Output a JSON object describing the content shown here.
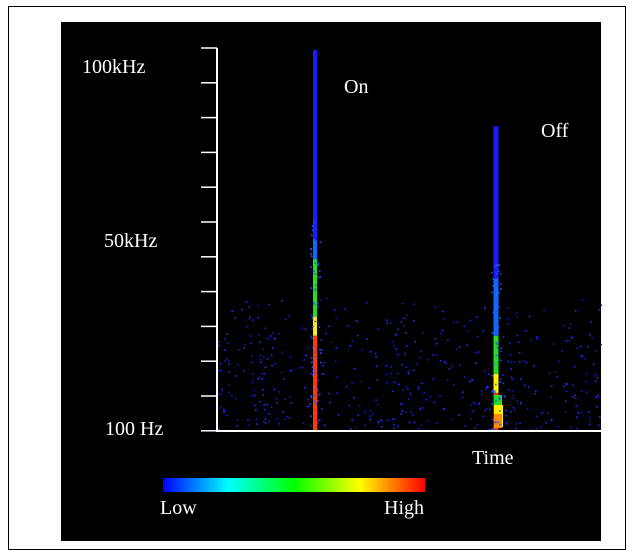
{
  "chart_data": {
    "type": "heatmap",
    "title": "",
    "xlabel": "Time",
    "ylabel": "",
    "y_tick_labels": [
      "100kHz",
      "50kHz",
      "100 Hz"
    ],
    "annotations": [
      "On",
      "Off"
    ],
    "legend": {
      "low_label": "Low",
      "high_label": "High",
      "gradient_colors": [
        "#0000ff",
        "#00ffff",
        "#00ff00",
        "#ffff00",
        "#ff0000"
      ]
    },
    "events": [
      {
        "label": "On",
        "max_freq_khz": 100,
        "segments": [
          {
            "from_khz": 50,
            "to_khz": 100,
            "level": "low"
          },
          {
            "from_khz": 45,
            "to_khz": 50,
            "level": "low-mid"
          },
          {
            "from_khz": 30,
            "to_khz": 45,
            "level": "mid"
          },
          {
            "from_khz": 25,
            "to_khz": 30,
            "level": "mid-high"
          },
          {
            "from_khz": 0.1,
            "to_khz": 25,
            "level": "high"
          }
        ]
      },
      {
        "label": "Off",
        "max_freq_khz": 80,
        "segments": [
          {
            "from_khz": 40,
            "to_khz": 80,
            "level": "low"
          },
          {
            "from_khz": 25,
            "to_khz": 40,
            "level": "low-mid"
          },
          {
            "from_khz": 15,
            "to_khz": 25,
            "level": "mid"
          },
          {
            "from_khz": 10,
            "to_khz": 15,
            "level": "mid-high"
          },
          {
            "from_khz": 0.1,
            "to_khz": 10,
            "level": "high"
          }
        ]
      }
    ],
    "background_noise": {
      "from_khz": 0.1,
      "to_khz": 35,
      "level": "low"
    },
    "colors": {
      "background": "#000000",
      "axis": "#ffffff",
      "text": "#ffffff"
    }
  }
}
